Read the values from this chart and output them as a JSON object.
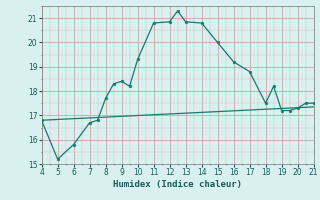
{
  "x": [
    4,
    5,
    6,
    7,
    7.5,
    8,
    8.5,
    9,
    9.5,
    10,
    11,
    12,
    12.5,
    13,
    14,
    15,
    16,
    17,
    18,
    18.5,
    19,
    19.5,
    20,
    20.5,
    21
  ],
  "y": [
    16.8,
    15.2,
    15.8,
    16.7,
    16.8,
    17.7,
    18.3,
    18.4,
    18.2,
    19.3,
    20.8,
    20.85,
    21.3,
    20.85,
    20.8,
    20.0,
    19.2,
    18.8,
    17.5,
    18.2,
    17.2,
    17.2,
    17.3,
    17.5,
    17.5
  ],
  "line_color": "#1a7a6e",
  "line2_x": [
    4,
    21
  ],
  "line2_y": [
    16.8,
    17.35
  ],
  "bg_color": "#d8f0f0",
  "grid_major_color": "#c8a8a8",
  "grid_minor_color": "#d0b8b8",
  "xlabel": "Humidex (Indice chaleur)",
  "xlim": [
    4,
    21
  ],
  "ylim": [
    15,
    21.5
  ],
  "xticks": [
    4,
    5,
    6,
    7,
    8,
    9,
    10,
    11,
    12,
    13,
    14,
    15,
    16,
    17,
    18,
    19,
    20,
    21
  ],
  "yticks": [
    15,
    16,
    17,
    18,
    19,
    20,
    21
  ]
}
